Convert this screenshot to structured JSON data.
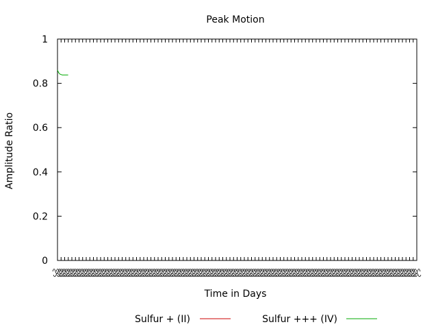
{
  "chart_data": {
    "type": "line",
    "title": "Peak Motion",
    "xlabel": "Time in Days",
    "ylabel": "Amplitude Ratio",
    "ylim": [
      0,
      1
    ],
    "y_ticks": [
      "0",
      "0.2",
      "0.4",
      "0.6",
      "0.8",
      "1"
    ],
    "x_tick_count": 100,
    "x_tick_label_note": "dense overlapping date labels, illegible",
    "grid": false,
    "legend_position": "bottom",
    "series": [
      {
        "name": "Sulfur + (II)",
        "color": "#cc0000",
        "x": [],
        "values": []
      },
      {
        "name": "Sulfur +++ (IV)",
        "color": "#00aa00",
        "x": [
          0,
          1,
          2,
          3,
          4,
          5,
          6,
          7,
          8,
          9
        ],
        "values": [
          0.86,
          0.848,
          0.842,
          0.84,
          0.838,
          0.838,
          0.838,
          0.838,
          0.838,
          0.838
        ]
      }
    ]
  }
}
